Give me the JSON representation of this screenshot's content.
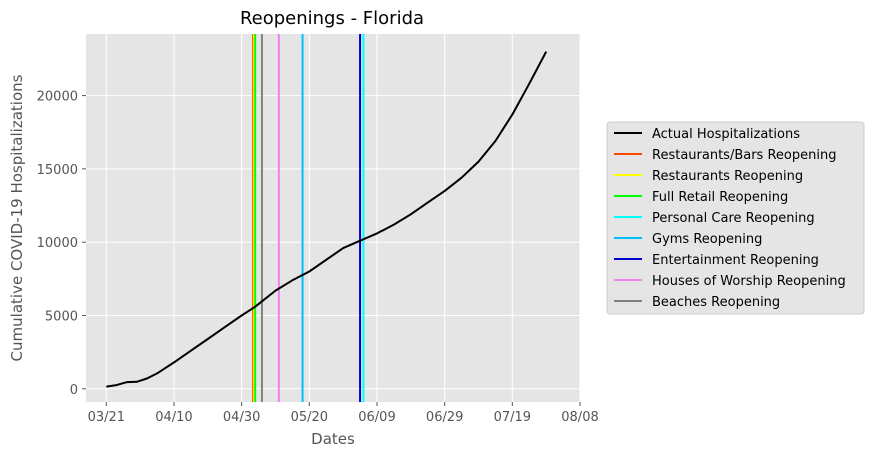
{
  "chart_data": {
    "type": "line",
    "title": "Reopenings - Florida",
    "xlabel": "Dates",
    "ylabel": "Cumulative COVID-19 Hospitalizations",
    "xlim": [
      "2020-03-15",
      "2020-08-08"
    ],
    "ylim": [
      -900,
      24200
    ],
    "x_ticks": [
      "2020-03-21",
      "2020-04-10",
      "2020-04-30",
      "2020-05-20",
      "2020-06-09",
      "2020-06-29",
      "2020-07-19",
      "2020-08-08"
    ],
    "x_tick_labels": [
      "03/21",
      "04/10",
      "04/30",
      "05/20",
      "06/09",
      "06/29",
      "07/19",
      "08/08"
    ],
    "y_ticks": [
      0,
      5000,
      10000,
      15000,
      20000
    ],
    "y_tick_labels": [
      "0",
      "5000",
      "10000",
      "15000",
      "20000"
    ],
    "grid": true,
    "legend_position": "right",
    "series": [
      {
        "name": "Actual Hospitalizations",
        "color": "#000000",
        "x": [
          "2020-03-21",
          "2020-03-24",
          "2020-03-27",
          "2020-03-30",
          "2020-04-02",
          "2020-04-05",
          "2020-04-08",
          "2020-04-10",
          "2020-04-15",
          "2020-04-20",
          "2020-04-25",
          "2020-04-30",
          "2020-05-04",
          "2020-05-10",
          "2020-05-15",
          "2020-05-20",
          "2020-05-25",
          "2020-05-30",
          "2020-06-04",
          "2020-06-09",
          "2020-06-14",
          "2020-06-19",
          "2020-06-24",
          "2020-06-29",
          "2020-07-04",
          "2020-07-09",
          "2020-07-14",
          "2020-07-19",
          "2020-07-24",
          "2020-07-29"
        ],
        "y": [
          150,
          250,
          450,
          480,
          700,
          1050,
          1500,
          1800,
          2600,
          3400,
          4200,
          5000,
          5600,
          6700,
          7400,
          8000,
          8800,
          9600,
          10100,
          10600,
          11200,
          11900,
          12700,
          13500,
          14400,
          15500,
          16900,
          18700,
          20800,
          23000
        ]
      }
    ],
    "vlines": [
      {
        "name": "Restaurants/Bars Reopening",
        "x": "2020-05-04",
        "color": "#ff4500"
      },
      {
        "name": "Restaurants Reopening",
        "x": "2020-05-04",
        "color": "#ffff00"
      },
      {
        "name": "Full Retail Reopening",
        "x": "2020-05-04",
        "color": "#00ff00"
      },
      {
        "name": "Personal Care Reopening",
        "x": "2020-06-05",
        "color": "#00ffff"
      },
      {
        "name": "Gyms Reopening",
        "x": "2020-05-18",
        "color": "#00bfff"
      },
      {
        "name": "Entertainment Reopening",
        "x": "2020-06-04",
        "color": "#0000cd"
      },
      {
        "name": "Houses of Worship Reopening",
        "x": "2020-05-11",
        "color": "#ee82ee"
      },
      {
        "name": "Beaches Reopening",
        "x": "2020-05-06",
        "color": "#808080"
      }
    ],
    "legend": [
      {
        "label": "Actual Hospitalizations",
        "color": "#000000"
      },
      {
        "label": "Restaurants/Bars Reopening",
        "color": "#ff4500"
      },
      {
        "label": "Restaurants Reopening",
        "color": "#ffff00"
      },
      {
        "label": "Full Retail Reopening",
        "color": "#00ff00"
      },
      {
        "label": "Personal Care Reopening",
        "color": "#00ffff"
      },
      {
        "label": "Gyms Reopening",
        "color": "#00bfff"
      },
      {
        "label": "Entertainment Reopening",
        "color": "#0000cd"
      },
      {
        "label": "Houses of Worship Reopening",
        "color": "#ee82ee"
      },
      {
        "label": "Beaches Reopening",
        "color": "#808080"
      }
    ]
  }
}
